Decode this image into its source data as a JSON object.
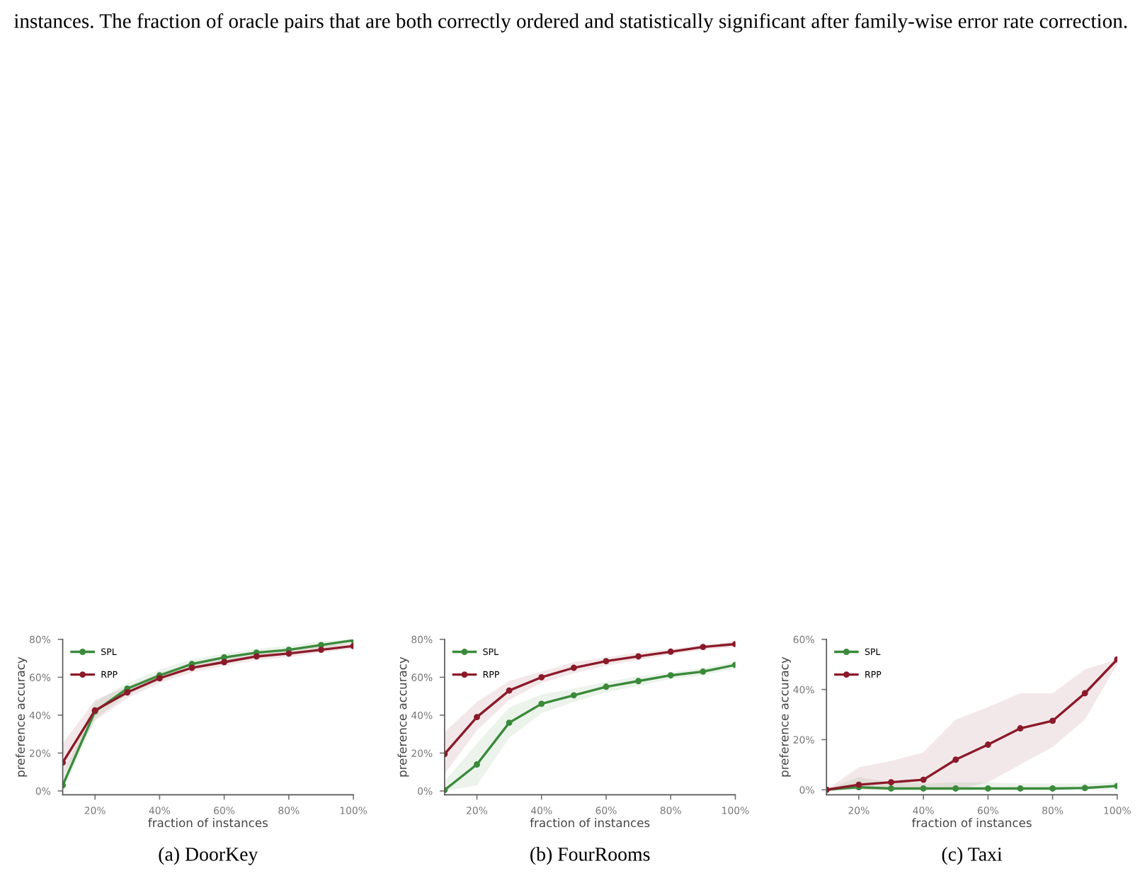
{
  "chart_data": [
    {
      "type": "line",
      "title": "(a) DoorKey",
      "xlabel": "fraction of instances",
      "ylabel": "preference accuracy",
      "annotations": [
        "instances. The fraction of oracle pairs that are both correctly ordered and statistically significant after family-wise error rate correction."
      ],
      "x": [
        10,
        20,
        30,
        40,
        50,
        60,
        70,
        80,
        90,
        100
      ],
      "series": [
        {
          "name": "SPL",
          "color": "#3a8a3a",
          "values": [
            3,
            42,
            54,
            61,
            67,
            70.5,
            73,
            74.5,
            77,
            79.5
          ],
          "lower": [
            0,
            38,
            51,
            58,
            64.5,
            68.5,
            71,
            72.5,
            75,
            78
          ],
          "upper": [
            8,
            47,
            57,
            64,
            69.5,
            72.5,
            75,
            76.5,
            79,
            80
          ]
        },
        {
          "name": "RPP",
          "color": "#8b1a2a",
          "values": [
            15,
            42.5,
            52,
            59.5,
            65,
            68,
            71,
            72.5,
            74.5,
            76.5
          ],
          "lower": [
            8,
            37,
            49,
            57,
            62.5,
            66,
            69,
            70.5,
            73,
            75
          ],
          "upper": [
            25,
            48,
            55,
            62,
            67.5,
            70,
            73,
            74.5,
            76.5,
            78
          ]
        }
      ],
      "xlim": [
        10,
        100
      ],
      "ylim": [
        -2,
        80
      ],
      "xticks": [
        {
          "value": 20,
          "label": "20%"
        },
        {
          "value": 40,
          "label": "40%"
        },
        {
          "value": 60,
          "label": "60%"
        },
        {
          "value": 80,
          "label": "80%"
        },
        {
          "value": 100,
          "label": "100%"
        }
      ],
      "yticks": [
        {
          "value": 0,
          "label": "0%"
        },
        {
          "value": 20,
          "label": "20%"
        },
        {
          "value": 40,
          "label": "40%"
        },
        {
          "value": 60,
          "label": "60%"
        },
        {
          "value": 80,
          "label": "80%"
        }
      ],
      "legend": "top left",
      "marker": "circle",
      "line_style": "solid",
      "grid": false
    },
    {
      "type": "line",
      "title": "(b) FourRooms",
      "xlabel": "fraction of instances",
      "ylabel": "preference accuracy",
      "x": [
        10,
        20,
        30,
        40,
        50,
        60,
        70,
        80,
        90,
        100
      ],
      "series": [
        {
          "name": "SPL",
          "color": "#3a8a3a",
          "values": [
            0.5,
            14,
            36,
            46,
            50.5,
            55,
            58,
            61,
            63,
            66.5
          ],
          "lower": [
            0,
            3,
            28,
            41,
            47,
            52,
            55.5,
            59,
            61,
            64.5
          ],
          "upper": [
            5,
            25,
            44,
            51,
            54,
            57.5,
            60.5,
            62.5,
            65,
            68
          ]
        },
        {
          "name": "RPP",
          "color": "#8b1a2a",
          "values": [
            19.5,
            39,
            53,
            60,
            65,
            68.5,
            71,
            73.5,
            76,
            77.5
          ],
          "lower": [
            9,
            32,
            48,
            57,
            62,
            66,
            69,
            72,
            74.5,
            76
          ],
          "upper": [
            31,
            47,
            58,
            63,
            68,
            70.5,
            73,
            75,
            77,
            79
          ]
        }
      ],
      "xlim": [
        10,
        100
      ],
      "ylim": [
        -2,
        80
      ],
      "xticks": [
        {
          "value": 20,
          "label": "20%"
        },
        {
          "value": 40,
          "label": "40%"
        },
        {
          "value": 60,
          "label": "60%"
        },
        {
          "value": 80,
          "label": "80%"
        },
        {
          "value": 100,
          "label": "100%"
        }
      ],
      "yticks": [
        {
          "value": 0,
          "label": "0%"
        },
        {
          "value": 20,
          "label": "20%"
        },
        {
          "value": 40,
          "label": "40%"
        },
        {
          "value": 60,
          "label": "60%"
        },
        {
          "value": 80,
          "label": "80%"
        }
      ],
      "legend": "top left",
      "marker": "circle",
      "line_style": "solid",
      "grid": false
    },
    {
      "type": "line",
      "title": "(c) Taxi",
      "xlabel": "fraction of instances",
      "ylabel": "preference accuracy",
      "x": [
        10,
        20,
        30,
        40,
        50,
        60,
        70,
        80,
        90,
        100
      ],
      "series": [
        {
          "name": "SPL",
          "color": "#3a8a3a",
          "values": [
            0,
            1,
            0.5,
            0.5,
            0.5,
            0.5,
            0.5,
            0.5,
            0.7,
            1.5
          ],
          "lower": [
            0,
            0,
            0,
            0,
            0,
            0,
            0,
            0,
            0,
            0
          ],
          "upper": [
            0,
            5,
            3,
            2.5,
            3,
            3,
            2.5,
            2.5,
            2.5,
            3
          ]
        },
        {
          "name": "RPP",
          "color": "#8b1a2a",
          "values": [
            0,
            2,
            3,
            4,
            12,
            18,
            24.5,
            27.5,
            38.5,
            52
          ],
          "lower": [
            0,
            0,
            0,
            0,
            0,
            3,
            10,
            17,
            28,
            50
          ],
          "upper": [
            0,
            9,
            11.5,
            15,
            28,
            33,
            38.5,
            38.5,
            48,
            52
          ]
        }
      ],
      "xlim": [
        10,
        100
      ],
      "ylim": [
        -2,
        60
      ],
      "xticks": [
        {
          "value": 20,
          "label": "20%"
        },
        {
          "value": 40,
          "label": "40%"
        },
        {
          "value": 60,
          "label": "60%"
        },
        {
          "value": 80,
          "label": "80%"
        },
        {
          "value": 100,
          "label": "100%"
        }
      ],
      "yticks": [
        {
          "value": 0,
          "label": "0%"
        },
        {
          "value": 20,
          "label": "20%"
        },
        {
          "value": 40,
          "label": "40%"
        },
        {
          "value": 60,
          "label": "60%"
        }
      ],
      "legend": "top left",
      "marker": "circle",
      "line_style": "solid",
      "grid": false
    }
  ]
}
